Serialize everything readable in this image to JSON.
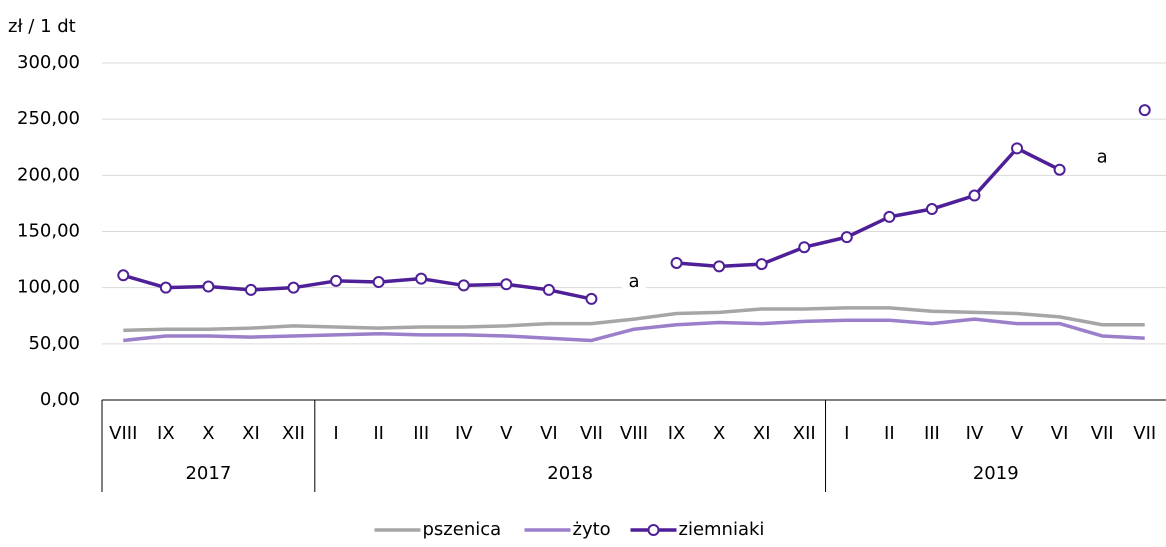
{
  "chart_data": {
    "type": "line",
    "y_label": "zł / 1 dt",
    "groups": [
      {
        "name": "2017",
        "categories": [
          "VIII",
          "IX",
          "X",
          "XI",
          "XII"
        ]
      },
      {
        "name": "2018",
        "categories": [
          "I",
          "II",
          "III",
          "IV",
          "V",
          "VI",
          "VII",
          "VIII",
          "IX",
          "X",
          "XI",
          "XII"
        ]
      },
      {
        "name": "2019",
        "categories": [
          "I",
          "II",
          "III",
          "IV",
          "V",
          "VI",
          "VII",
          "VII"
        ]
      }
    ],
    "series": [
      {
        "name": "pszenica",
        "color": "#a6a6a6",
        "markers": false,
        "values": [
          62,
          63,
          63,
          64,
          66,
          65,
          64,
          65,
          65,
          66,
          68,
          68,
          72,
          77,
          78,
          81,
          81,
          82,
          82,
          79,
          78,
          77,
          74,
          67,
          67
        ]
      },
      {
        "name": "żyto",
        "color": "#9b7fcb",
        "markers": false,
        "values": [
          53,
          57,
          57,
          56,
          57,
          58,
          59,
          58,
          58,
          57,
          55,
          53,
          63,
          67,
          69,
          68,
          70,
          71,
          71,
          68,
          72,
          68,
          68,
          57,
          55
        ]
      },
      {
        "name": "ziemniaki",
        "color": "#4e1f96",
        "markers": true,
        "values": [
          111,
          100,
          101,
          98,
          100,
          106,
          105,
          108,
          102,
          103,
          98,
          90,
          null,
          122,
          119,
          121,
          136,
          145,
          163,
          170,
          182,
          224,
          205,
          null,
          258
        ]
      }
    ],
    "annotations": [
      {
        "text": "a",
        "index": 12,
        "value": 105
      },
      {
        "text": "a",
        "index": 23,
        "value": 216
      }
    ],
    "ylim": [
      0,
      300
    ],
    "yticks": [
      {
        "value": 0,
        "label": "0,00"
      },
      {
        "value": 50,
        "label": "50,00"
      },
      {
        "value": 100,
        "label": "100,00"
      },
      {
        "value": 150,
        "label": "150,00"
      },
      {
        "value": 200,
        "label": "200,00"
      },
      {
        "value": 250,
        "label": "250,00"
      },
      {
        "value": 300,
        "label": "300,00"
      }
    ],
    "grid": true,
    "legend": "bottom"
  }
}
